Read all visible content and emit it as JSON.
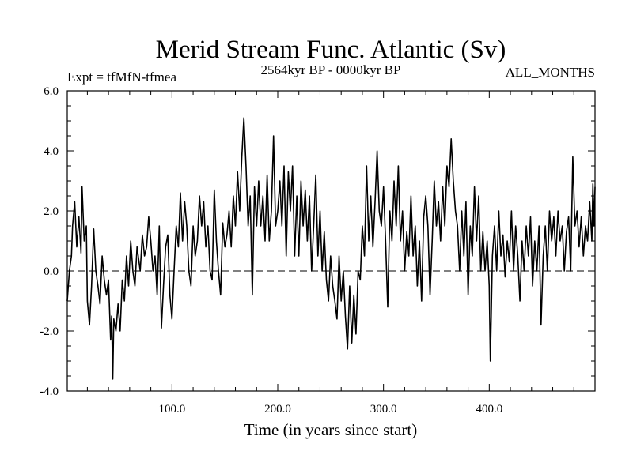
{
  "chart_data": {
    "type": "line",
    "title": "Merid Stream Func. Atlantic (Sv)",
    "subtitle_left": "Expt = tfMfN-tfmea",
    "subtitle_center": "2564kyr BP - 0000kyr BP",
    "subtitle_right": "ALL_MONTHS",
    "xlabel": "Time (in years since start)",
    "ylabel": "",
    "xlim": [
      1,
      500
    ],
    "ylim": [
      -4.0,
      6.0
    ],
    "x_ticks": [
      100,
      200,
      300,
      400
    ],
    "x_tick_labels": [
      "100.0",
      "200.0",
      "300.0",
      "400.0"
    ],
    "y_ticks": [
      -4,
      -2,
      0,
      2,
      4,
      6
    ],
    "y_tick_labels": [
      "-4.0",
      "-2.0",
      "0.0",
      "2.0",
      "4.0",
      "6.0"
    ],
    "reference_line": 0.0,
    "series": [
      {
        "name": "Merid Stream Func. Atlantic",
        "points": [
          [
            1,
            -1.0
          ],
          [
            3,
            0.0
          ],
          [
            5,
            0.5
          ],
          [
            6,
            1.5
          ],
          [
            8,
            2.3
          ],
          [
            10,
            0.8
          ],
          [
            12,
            1.8
          ],
          [
            14,
            0.6
          ],
          [
            15,
            2.8
          ],
          [
            17,
            1.0
          ],
          [
            19,
            1.5
          ],
          [
            20,
            -1.0
          ],
          [
            22,
            -1.8
          ],
          [
            24,
            -0.5
          ],
          [
            26,
            1.4
          ],
          [
            28,
            0.0
          ],
          [
            30,
            -0.5
          ],
          [
            32,
            -1.1
          ],
          [
            34,
            0.5
          ],
          [
            36,
            -0.3
          ],
          [
            38,
            -0.8
          ],
          [
            40,
            -0.3
          ],
          [
            42,
            -2.3
          ],
          [
            43,
            -1.5
          ],
          [
            44,
            -3.6
          ],
          [
            45,
            -1.6
          ],
          [
            47,
            -2.0
          ],
          [
            49,
            -1.1
          ],
          [
            51,
            -2.0
          ],
          [
            53,
            -0.3
          ],
          [
            55,
            -1.0
          ],
          [
            57,
            0.5
          ],
          [
            59,
            -0.5
          ],
          [
            61,
            1.0
          ],
          [
            63,
            0.0
          ],
          [
            65,
            -0.5
          ],
          [
            67,
            0.8
          ],
          [
            70,
            0.0
          ],
          [
            72,
            1.2
          ],
          [
            74,
            0.5
          ],
          [
            76,
            0.8
          ],
          [
            78,
            1.8
          ],
          [
            80,
            1.0
          ],
          [
            82,
            0.0
          ],
          [
            84,
            0.5
          ],
          [
            86,
            -0.8
          ],
          [
            88,
            1.5
          ],
          [
            90,
            -1.9
          ],
          [
            92,
            -0.5
          ],
          [
            94,
            0.8
          ],
          [
            96,
            1.2
          ],
          [
            98,
            -0.8
          ],
          [
            100,
            -1.6
          ],
          [
            102,
            0.0
          ],
          [
            104,
            1.5
          ],
          [
            106,
            0.8
          ],
          [
            108,
            2.6
          ],
          [
            110,
            1.0
          ],
          [
            112,
            2.3
          ],
          [
            114,
            1.5
          ],
          [
            116,
            0.0
          ],
          [
            118,
            -0.5
          ],
          [
            120,
            1.5
          ],
          [
            122,
            0.5
          ],
          [
            124,
            1.0
          ],
          [
            126,
            2.5
          ],
          [
            128,
            1.5
          ],
          [
            130,
            2.3
          ],
          [
            132,
            0.8
          ],
          [
            134,
            1.5
          ],
          [
            136,
            0.0
          ],
          [
            138,
            -0.3
          ],
          [
            140,
            2.7
          ],
          [
            142,
            1.0
          ],
          [
            144,
            0.0
          ],
          [
            146,
            -0.8
          ],
          [
            148,
            1.6
          ],
          [
            150,
            0.8
          ],
          [
            152,
            1.2
          ],
          [
            154,
            2.0
          ],
          [
            156,
            0.8
          ],
          [
            158,
            2.5
          ],
          [
            160,
            1.5
          ],
          [
            162,
            3.3
          ],
          [
            164,
            2.0
          ],
          [
            166,
            3.8
          ],
          [
            168,
            5.1
          ],
          [
            170,
            3.5
          ],
          [
            172,
            1.5
          ],
          [
            174,
            2.5
          ],
          [
            176,
            -0.8
          ],
          [
            178,
            2.8
          ],
          [
            180,
            1.5
          ],
          [
            182,
            3.0
          ],
          [
            184,
            1.5
          ],
          [
            186,
            2.5
          ],
          [
            188,
            1.0
          ],
          [
            190,
            3.2
          ],
          [
            192,
            1.0
          ],
          [
            194,
            2.0
          ],
          [
            196,
            4.5
          ],
          [
            198,
            1.5
          ],
          [
            200,
            2.0
          ],
          [
            202,
            3.0
          ],
          [
            204,
            1.5
          ],
          [
            206,
            3.5
          ],
          [
            208,
            0.5
          ],
          [
            210,
            3.3
          ],
          [
            212,
            2.0
          ],
          [
            214,
            3.5
          ],
          [
            216,
            0.5
          ],
          [
            218,
            2.5
          ],
          [
            220,
            0.5
          ],
          [
            222,
            3.0
          ],
          [
            224,
            1.5
          ],
          [
            226,
            2.7
          ],
          [
            228,
            1.0
          ],
          [
            230,
            2.5
          ],
          [
            232,
            0.0
          ],
          [
            234,
            1.5
          ],
          [
            236,
            3.2
          ],
          [
            238,
            0.5
          ],
          [
            240,
            2.0
          ],
          [
            242,
            0.0
          ],
          [
            244,
            1.3
          ],
          [
            246,
            -0.3
          ],
          [
            248,
            -1.0
          ],
          [
            250,
            0.5
          ],
          [
            252,
            -0.5
          ],
          [
            254,
            -1.0
          ],
          [
            256,
            -1.6
          ],
          [
            258,
            0.5
          ],
          [
            260,
            -1.0
          ],
          [
            262,
            0.0
          ],
          [
            264,
            -1.5
          ],
          [
            266,
            -2.6
          ],
          [
            268,
            -0.5
          ],
          [
            270,
            -2.4
          ],
          [
            272,
            -0.8
          ],
          [
            274,
            -2.1
          ],
          [
            276,
            0.0
          ],
          [
            278,
            -0.3
          ],
          [
            280,
            1.5
          ],
          [
            282,
            0.5
          ],
          [
            284,
            3.5
          ],
          [
            286,
            1.0
          ],
          [
            288,
            2.5
          ],
          [
            290,
            0.8
          ],
          [
            292,
            2.3
          ],
          [
            294,
            4.0
          ],
          [
            296,
            2.0
          ],
          [
            298,
            1.5
          ],
          [
            300,
            2.8
          ],
          [
            302,
            1.0
          ],
          [
            304,
            -1.2
          ],
          [
            306,
            2.0
          ],
          [
            308,
            1.0
          ],
          [
            310,
            3.0
          ],
          [
            312,
            1.5
          ],
          [
            314,
            3.5
          ],
          [
            316,
            1.0
          ],
          [
            318,
            2.0
          ],
          [
            320,
            0.0
          ],
          [
            322,
            1.3
          ],
          [
            324,
            0.5
          ],
          [
            326,
            2.5
          ],
          [
            328,
            0.5
          ],
          [
            330,
            1.5
          ],
          [
            332,
            -0.5
          ],
          [
            334,
            1.0
          ],
          [
            336,
            -1.0
          ],
          [
            338,
            1.8
          ],
          [
            340,
            2.5
          ],
          [
            342,
            1.5
          ],
          [
            344,
            -0.8
          ],
          [
            346,
            1.0
          ],
          [
            348,
            3.0
          ],
          [
            350,
            1.5
          ],
          [
            352,
            2.3
          ],
          [
            354,
            1.0
          ],
          [
            356,
            2.8
          ],
          [
            358,
            1.5
          ],
          [
            360,
            3.5
          ],
          [
            362,
            2.8
          ],
          [
            364,
            4.4
          ],
          [
            366,
            3.0
          ],
          [
            368,
            2.0
          ],
          [
            370,
            1.5
          ],
          [
            372,
            0.0
          ],
          [
            374,
            2.0
          ],
          [
            376,
            0.5
          ],
          [
            378,
            2.3
          ],
          [
            380,
            -0.8
          ],
          [
            382,
            1.5
          ],
          [
            384,
            0.5
          ],
          [
            386,
            2.8
          ],
          [
            388,
            1.0
          ],
          [
            390,
            2.5
          ],
          [
            392,
            0.0
          ],
          [
            394,
            1.3
          ],
          [
            396,
            0.0
          ],
          [
            398,
            1.0
          ],
          [
            400,
            -0.5
          ],
          [
            401,
            -3.0
          ],
          [
            403,
            0.5
          ],
          [
            405,
            1.5
          ],
          [
            407,
            0.0
          ],
          [
            409,
            2.0
          ],
          [
            411,
            0.5
          ],
          [
            413,
            1.2
          ],
          [
            415,
            -0.2
          ],
          [
            417,
            1.0
          ],
          [
            419,
            0.3
          ],
          [
            421,
            2.0
          ],
          [
            423,
            0.0
          ],
          [
            425,
            1.5
          ],
          [
            427,
            0.5
          ],
          [
            429,
            -1.0
          ],
          [
            431,
            1.0
          ],
          [
            433,
            0.0
          ],
          [
            435,
            1.5
          ],
          [
            437,
            0.5
          ],
          [
            439,
            1.8
          ],
          [
            441,
            -0.5
          ],
          [
            443,
            1.0
          ],
          [
            445,
            0.0
          ],
          [
            447,
            1.5
          ],
          [
            449,
            -1.8
          ],
          [
            451,
            0.5
          ],
          [
            453,
            1.5
          ],
          [
            455,
            0.0
          ],
          [
            457,
            2.0
          ],
          [
            459,
            1.0
          ],
          [
            461,
            1.8
          ],
          [
            463,
            0.5
          ],
          [
            465,
            2.0
          ],
          [
            467,
            1.0
          ],
          [
            469,
            1.5
          ],
          [
            471,
            0.0
          ],
          [
            473,
            1.3
          ],
          [
            475,
            1.8
          ],
          [
            477,
            0.0
          ],
          [
            479,
            3.8
          ],
          [
            481,
            1.5
          ],
          [
            483,
            2.0
          ],
          [
            485,
            0.8
          ],
          [
            487,
            1.8
          ],
          [
            489,
            0.5
          ],
          [
            491,
            1.5
          ],
          [
            493,
            1.0
          ],
          [
            495,
            2.3
          ],
          [
            497,
            1.0
          ],
          [
            498,
            2.9
          ],
          [
            499,
            1.5
          ],
          [
            500,
            2.8
          ]
        ]
      }
    ]
  }
}
